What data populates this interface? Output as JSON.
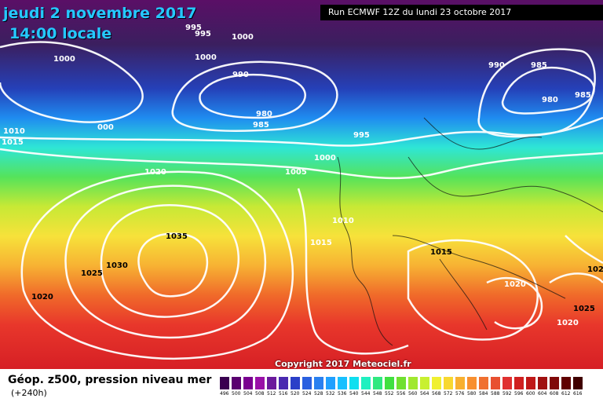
{
  "map": {
    "date_line": "jeudi 2 novembre 2017",
    "time_line": "14:00 locale",
    "run_info": "Run ECMWF 12Z du lundi 23 octobre 2017",
    "copyright": "Copyright 2017 Meteociel.fr",
    "isobar_labels": [
      "995",
      "995",
      "1000",
      "1000",
      "1000",
      "990",
      "980",
      "985",
      "1010",
      "1015",
      "000",
      "995",
      "1000",
      "1005",
      "1020",
      "990",
      "985",
      "980",
      "985",
      "1010",
      "1015",
      "1035",
      "1030",
      "1025",
      "1020",
      "1015",
      "1020",
      "1025",
      "1020",
      "102"
    ]
  },
  "legend": {
    "title": "Géop. z500, pression niveau mer",
    "subtitle": "(+240h)",
    "levels": [
      "496",
      "500",
      "504",
      "508",
      "512",
      "516",
      "520",
      "524",
      "528",
      "532",
      "536",
      "540",
      "544",
      "548",
      "552",
      "556",
      "560",
      "564",
      "568",
      "572",
      "576",
      "580",
      "584",
      "588",
      "592",
      "596",
      "600",
      "604",
      "608",
      "612",
      "616"
    ],
    "colors": [
      "#3a0050",
      "#5a0070",
      "#7a0090",
      "#9a10a8",
      "#6b1a9c",
      "#4a2ab0",
      "#2b3fc8",
      "#2a60e0",
      "#2a80f0",
      "#20a0ff",
      "#18c0ff",
      "#10dff0",
      "#20f0c0",
      "#30e880",
      "#40e040",
      "#70e030",
      "#a0e830",
      "#c8f030",
      "#f0f030",
      "#f8d830",
      "#f8b030",
      "#f89030",
      "#f07030",
      "#e85030",
      "#e03030",
      "#d02020",
      "#c01818",
      "#a01010",
      "#800808",
      "#600000",
      "#400000"
    ]
  }
}
